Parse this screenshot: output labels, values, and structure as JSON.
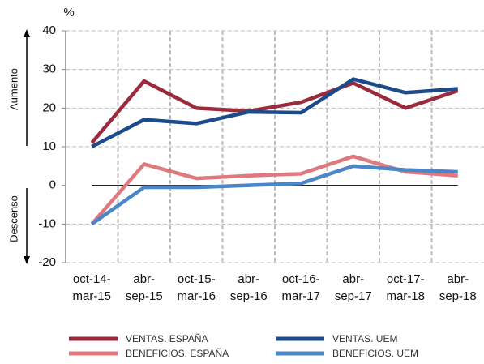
{
  "chart_data": {
    "type": "line",
    "y_label": "%",
    "annotations": [
      "Aumento",
      "Descenso"
    ],
    "categories": [
      [
        "oct-14-",
        "mar-15"
      ],
      [
        "abr-",
        "sep-15"
      ],
      [
        "oct-15-",
        "mar-16"
      ],
      [
        "abr-",
        "sep-16"
      ],
      [
        "oct-16-",
        "mar-17"
      ],
      [
        "abr-",
        "sep-17"
      ],
      [
        "oct-17-",
        "mar-18"
      ],
      [
        "abr-",
        "sep-18"
      ]
    ],
    "series": [
      {
        "name": "VENTAS. ESPAÑA",
        "color": "#9b2a3c",
        "values": [
          11,
          27,
          20,
          19.2,
          21.5,
          26.5,
          20,
          24.5
        ]
      },
      {
        "name": "VENTAS. UEM",
        "color": "#1c4a8a",
        "values": [
          10,
          17,
          16,
          19,
          18.8,
          27.5,
          24,
          25
        ]
      },
      {
        "name": "BENEFICIOS. ESPAÑA",
        "color": "#e07880",
        "values": [
          -10,
          5.5,
          1.8,
          2.5,
          3,
          7.5,
          3.5,
          2.5
        ]
      },
      {
        "name": "BENEFICIOS. UEM",
        "color": "#4a86c8",
        "values": [
          -10,
          -0.5,
          -0.5,
          0,
          0.5,
          5,
          4,
          3.5
        ]
      }
    ],
    "ylim": [
      -20,
      40
    ],
    "yticks": [
      -20,
      -10,
      0,
      10,
      20,
      30,
      40
    ],
    "grid": true
  }
}
